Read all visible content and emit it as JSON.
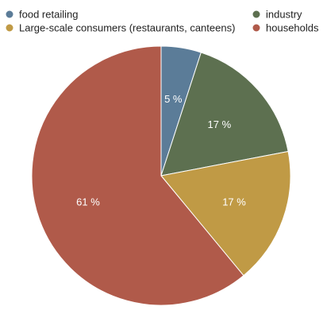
{
  "chart_data": {
    "type": "pie",
    "title": "",
    "legend_position": "top",
    "start_angle_deg": 0,
    "direction": "clockwise",
    "slices": [
      {
        "label": "food retailing",
        "value": 5,
        "value_label": "5 %",
        "color": "#5b7c98"
      },
      {
        "label": "industry",
        "value": 17,
        "value_label": "17 %",
        "color": "#5d7050"
      },
      {
        "label": "Large-scale consumers (restaurants, canteens)",
        "value": 17,
        "value_label": "17 %",
        "color": "#c09a45"
      },
      {
        "label": "households",
        "value": 61,
        "value_label": "61 %",
        "color": "#b05a4a"
      }
    ]
  }
}
